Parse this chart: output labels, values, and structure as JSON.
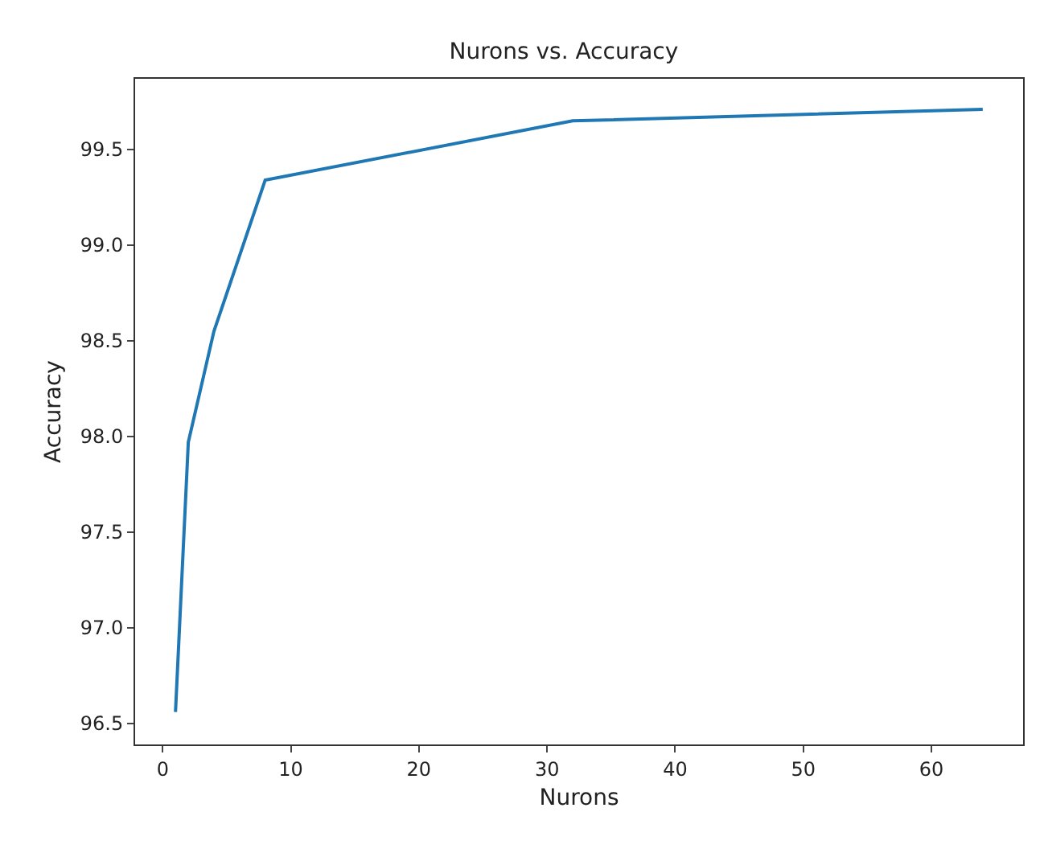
{
  "chart_data": {
    "type": "line",
    "title": "Nurons vs. Accuracy",
    "xlabel": "Nurons",
    "ylabel": "Accuracy",
    "x": [
      1,
      2,
      4,
      8,
      32,
      64
    ],
    "series": [
      {
        "color": "#1f77b4",
        "values": [
          96.56,
          97.97,
          98.55,
          99.34,
          99.65,
          99.71
        ]
      }
    ],
    "xlim": [
      -2.15,
      67.15
    ],
    "xticks": [
      0,
      10,
      20,
      30,
      40,
      50,
      60
    ],
    "ylim": [
      96.39,
      99.87
    ],
    "yticks": [
      {
        "value": 96.5,
        "label": "96.5"
      },
      {
        "value": 97,
        "label": "97.0"
      },
      {
        "value": 97.5,
        "label": "97.5"
      },
      {
        "value": 98,
        "label": "98.0"
      },
      {
        "value": 98.5,
        "label": "98.5"
      },
      {
        "value": 99,
        "label": "99.0"
      },
      {
        "value": 99.5,
        "label": "99.5"
      }
    ],
    "grid": false,
    "marker": "none",
    "line_style": "solid"
  }
}
